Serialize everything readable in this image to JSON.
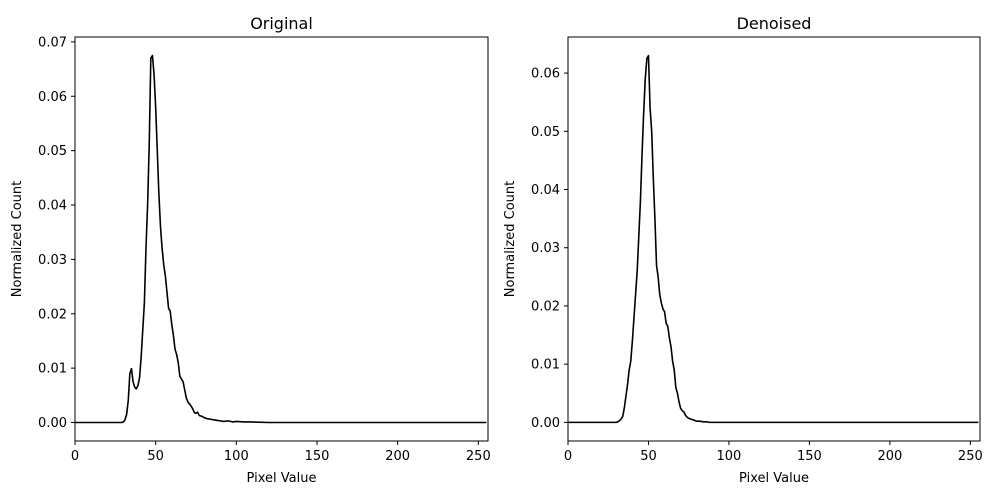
{
  "chart_data": [
    {
      "type": "line",
      "title": "Original",
      "xlabel": "Pixel Value",
      "ylabel": "Normalized Count",
      "xlim": [
        0,
        256
      ],
      "ylim": [
        -0.0034,
        0.0709
      ],
      "xticks": [
        0,
        50,
        100,
        150,
        200,
        250
      ],
      "yticks": [
        0.0,
        0.01,
        0.02,
        0.03,
        0.04,
        0.05,
        0.06,
        0.07
      ],
      "ytick_labels": [
        "0.00",
        "0.01",
        "0.02",
        "0.03",
        "0.04",
        "0.05",
        "0.06",
        "0.07"
      ],
      "grid": false,
      "line_color": "#000000",
      "series": [
        {
          "x": [
            0,
            29,
            30,
            31,
            32,
            33,
            34,
            35,
            36,
            37,
            38,
            39,
            40,
            41,
            42,
            43,
            44,
            45,
            46,
            47,
            48,
            49,
            50,
            51,
            52,
            53,
            54,
            55,
            56,
            57,
            58,
            59,
            60,
            61,
            62,
            63,
            64,
            65,
            66,
            67,
            68,
            69,
            70,
            71,
            72,
            73,
            74,
            75,
            76,
            77,
            78,
            79,
            80,
            82,
            84,
            86,
            88,
            90,
            92,
            95,
            98,
            100,
            105,
            110,
            120,
            130,
            150,
            200,
            255
          ],
          "y": [
            0,
            0,
            0.0001,
            0.0005,
            0.0015,
            0.004,
            0.009,
            0.0099,
            0.0075,
            0.0065,
            0.0062,
            0.0068,
            0.0082,
            0.012,
            0.017,
            0.022,
            0.032,
            0.04,
            0.051,
            0.067,
            0.0675,
            0.064,
            0.058,
            0.05,
            0.042,
            0.036,
            0.032,
            0.029,
            0.027,
            0.024,
            0.021,
            0.0205,
            0.018,
            0.016,
            0.0135,
            0.0125,
            0.011,
            0.0085,
            0.008,
            0.0075,
            0.006,
            0.0045,
            0.0038,
            0.0034,
            0.003,
            0.0025,
            0.0018,
            0.0017,
            0.0019,
            0.0013,
            0.0012,
            0.0011,
            0.0009,
            0.0007,
            0.0006,
            0.0005,
            0.0004,
            0.0003,
            0.0002,
            0.0003,
            0.0001,
            0.0002,
            0.0001,
            0.0001,
            0,
            0,
            0,
            0,
            0
          ]
        }
      ]
    },
    {
      "type": "line",
      "title": "Denoised",
      "xlabel": "Pixel Value",
      "ylabel": "Normalized Count",
      "xlim": [
        0,
        256
      ],
      "ylim": [
        -0.0032,
        0.0662
      ],
      "xticks": [
        0,
        50,
        100,
        150,
        200,
        250
      ],
      "yticks": [
        0.0,
        0.01,
        0.02,
        0.03,
        0.04,
        0.05,
        0.06
      ],
      "ytick_labels": [
        "0.00",
        "0.01",
        "0.02",
        "0.03",
        "0.04",
        "0.05",
        "0.06"
      ],
      "grid": false,
      "line_color": "#000000",
      "series": [
        {
          "x": [
            0,
            30,
            31,
            32,
            33,
            34,
            35,
            36,
            37,
            38,
            39,
            40,
            41,
            42,
            43,
            44,
            45,
            46,
            47,
            48,
            49,
            50,
            51,
            52,
            53,
            54,
            55,
            56,
            57,
            58,
            59,
            60,
            61,
            62,
            63,
            64,
            65,
            66,
            67,
            68,
            69,
            70,
            71,
            72,
            73,
            74,
            75,
            76,
            77,
            78,
            79,
            80,
            82,
            84,
            86,
            88,
            90,
            95,
            100,
            110,
            255
          ],
          "y": [
            0,
            0,
            0.0001,
            0.0003,
            0.0006,
            0.001,
            0.0025,
            0.0045,
            0.0065,
            0.009,
            0.0105,
            0.014,
            0.018,
            0.022,
            0.026,
            0.032,
            0.038,
            0.046,
            0.053,
            0.059,
            0.0625,
            0.063,
            0.054,
            0.05,
            0.042,
            0.035,
            0.027,
            0.025,
            0.022,
            0.0205,
            0.0195,
            0.019,
            0.017,
            0.0165,
            0.0145,
            0.013,
            0.0105,
            0.009,
            0.006,
            0.005,
            0.0035,
            0.0024,
            0.002,
            0.0018,
            0.0012,
            0.0009,
            0.0007,
            0.0006,
            0.0005,
            0.0004,
            0.0003,
            0.0002,
            0.0002,
            0.0001,
            0.0001,
            0,
            0,
            0,
            0,
            0,
            0
          ]
        }
      ]
    }
  ]
}
